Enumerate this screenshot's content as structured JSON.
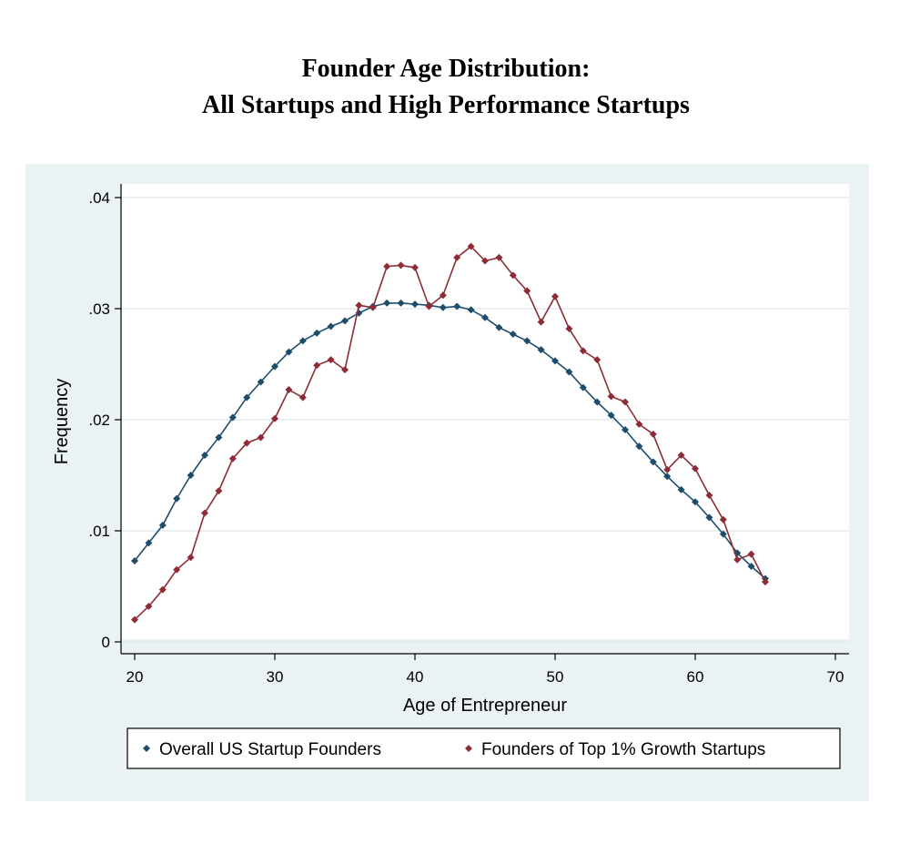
{
  "title_line1": "Founder Age Distribution:",
  "title_line2": "All Startups and High Performance Startups",
  "colors": {
    "panel_bg": "#eaf2f3",
    "plot_bg": "#ffffff",
    "grid": "#e3ebed",
    "series_blue": "#1e4d6b",
    "series_red": "#8e2c35"
  },
  "chart_data": {
    "type": "line",
    "xlabel": "Age of Entrepreneur",
    "ylabel": "Frequency",
    "xlim": [
      20,
      70
    ],
    "ylim": [
      0,
      0.04
    ],
    "x_ticks": [
      20,
      30,
      40,
      50,
      60,
      70
    ],
    "x_tick_labels": [
      "20",
      "30",
      "40",
      "50",
      "60",
      "70"
    ],
    "y_ticks": [
      0,
      0.01,
      0.02,
      0.03,
      0.04
    ],
    "y_tick_labels": [
      "0",
      ".01",
      ".02",
      ".03",
      ".04"
    ],
    "grid": true,
    "legend_position": "bottom",
    "x": [
      20,
      21,
      22,
      23,
      24,
      25,
      26,
      27,
      28,
      29,
      30,
      31,
      32,
      33,
      34,
      35,
      36,
      37,
      38,
      39,
      40,
      41,
      42,
      43,
      44,
      45,
      46,
      47,
      48,
      49,
      50,
      51,
      52,
      53,
      54,
      55,
      56,
      57,
      58,
      59,
      60,
      61,
      62,
      63,
      64,
      65
    ],
    "series": [
      {
        "name": "Overall US Startup Founders",
        "color": "#1e4d6b",
        "values": [
          0.0073,
          0.0089,
          0.0105,
          0.0129,
          0.015,
          0.0168,
          0.0184,
          0.0202,
          0.022,
          0.0234,
          0.0248,
          0.0261,
          0.0271,
          0.0278,
          0.0284,
          0.0289,
          0.0296,
          0.0302,
          0.0305,
          0.0305,
          0.0304,
          0.0303,
          0.0301,
          0.0302,
          0.0299,
          0.0292,
          0.0283,
          0.0277,
          0.0271,
          0.0263,
          0.0253,
          0.0243,
          0.0229,
          0.0216,
          0.0204,
          0.0191,
          0.0176,
          0.0162,
          0.0149,
          0.0137,
          0.0126,
          0.0112,
          0.0097,
          0.008,
          0.0068,
          0.0057
        ]
      },
      {
        "name": "Founders of Top 1% Growth Startups",
        "color": "#8e2c35",
        "values": [
          0.002,
          0.0032,
          0.0047,
          0.0065,
          0.0076,
          0.0116,
          0.0136,
          0.0165,
          0.0179,
          0.0184,
          0.0201,
          0.0227,
          0.022,
          0.0249,
          0.0254,
          0.0245,
          0.0303,
          0.0301,
          0.0338,
          0.0339,
          0.0337,
          0.0302,
          0.0312,
          0.0346,
          0.0356,
          0.0343,
          0.0346,
          0.033,
          0.0316,
          0.0288,
          0.0311,
          0.0282,
          0.0262,
          0.0254,
          0.0221,
          0.0216,
          0.0196,
          0.0187,
          0.0155,
          0.0168,
          0.0156,
          0.0132,
          0.011,
          0.0074,
          0.0079,
          0.0054
        ]
      }
    ]
  }
}
